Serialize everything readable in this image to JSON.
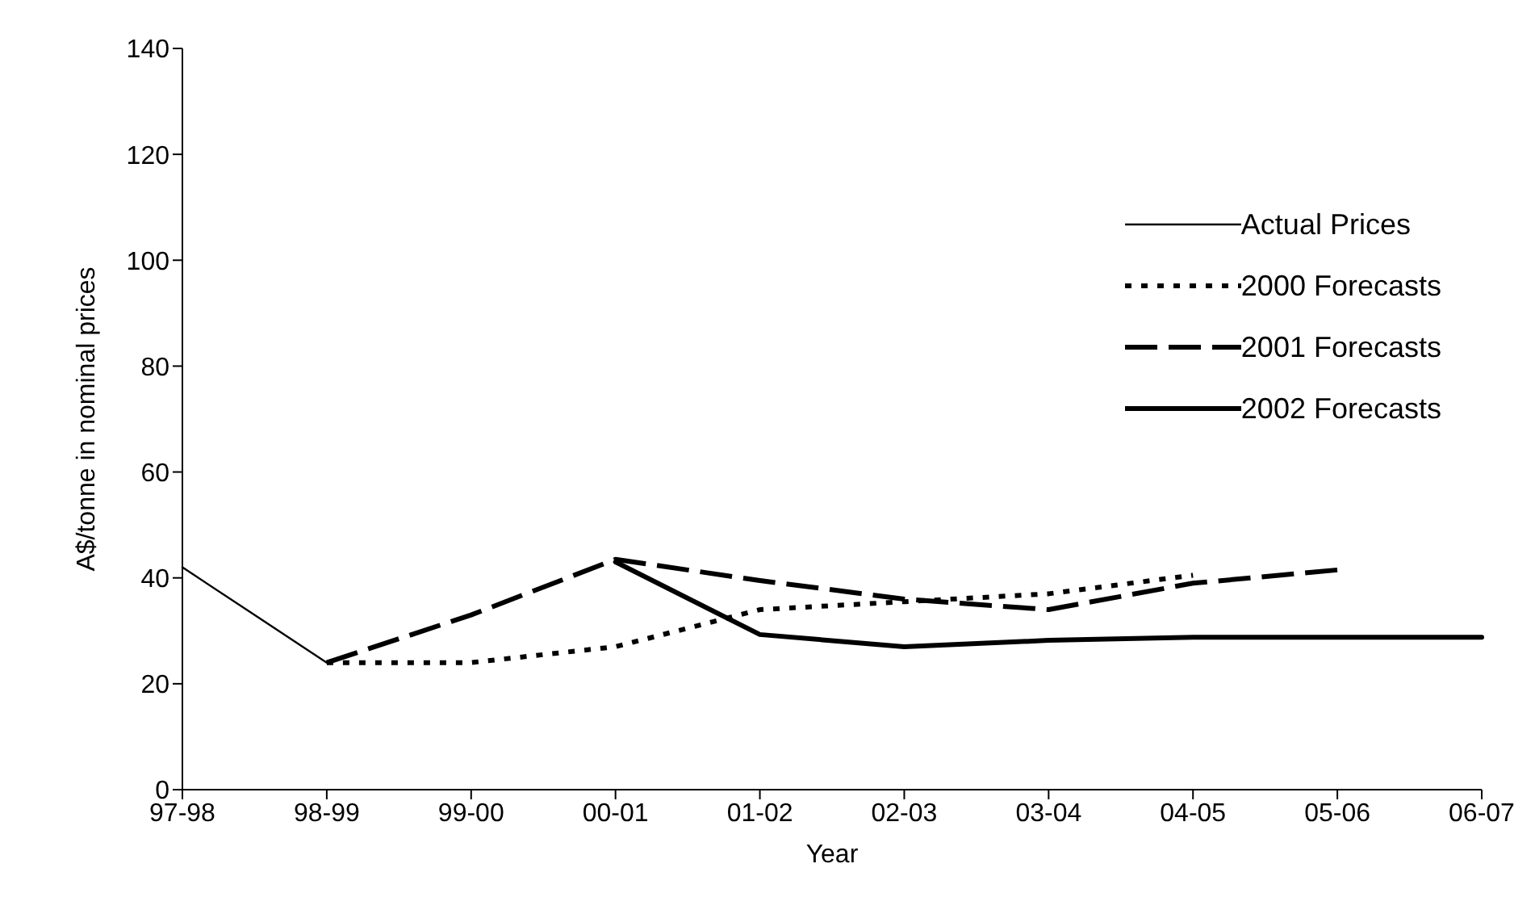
{
  "chart_data": {
    "type": "line",
    "xlabel": "Year",
    "ylabel": "A$/tonne in nominal prices",
    "categories": [
      "97-98",
      "98-99",
      "99-00",
      "00-01",
      "01-02",
      "02-03",
      "03-04",
      "04-05",
      "05-06",
      "06-07"
    ],
    "series": [
      {
        "name": "Actual Prices",
        "color": "#000000",
        "line_style": "solid",
        "values": [
          42,
          24,
          null,
          null,
          null,
          null,
          null,
          null,
          null,
          null
        ]
      },
      {
        "name": "2000 Forecasts",
        "color": "#000000",
        "line_style": "dotted",
        "values": [
          null,
          24,
          24,
          27,
          34,
          35.5,
          37,
          40.5,
          null,
          null
        ]
      },
      {
        "name": "2001 Forecasts",
        "color": "#000000",
        "line_style": "dashed",
        "values": [
          null,
          24,
          33,
          43.5,
          39.5,
          36,
          34,
          39,
          41.5,
          null
        ]
      },
      {
        "name": "2002 Forecasts",
        "color": "#000000",
        "line_style": "solid",
        "values": [
          null,
          null,
          null,
          43,
          29.3,
          27,
          28.2,
          28.8,
          28.8,
          28.8
        ]
      }
    ],
    "ylim": [
      0,
      140
    ],
    "yticks": [
      0,
      20,
      40,
      60,
      80,
      100,
      120,
      140
    ],
    "grid": false,
    "legend": "right",
    "marker": "none"
  }
}
